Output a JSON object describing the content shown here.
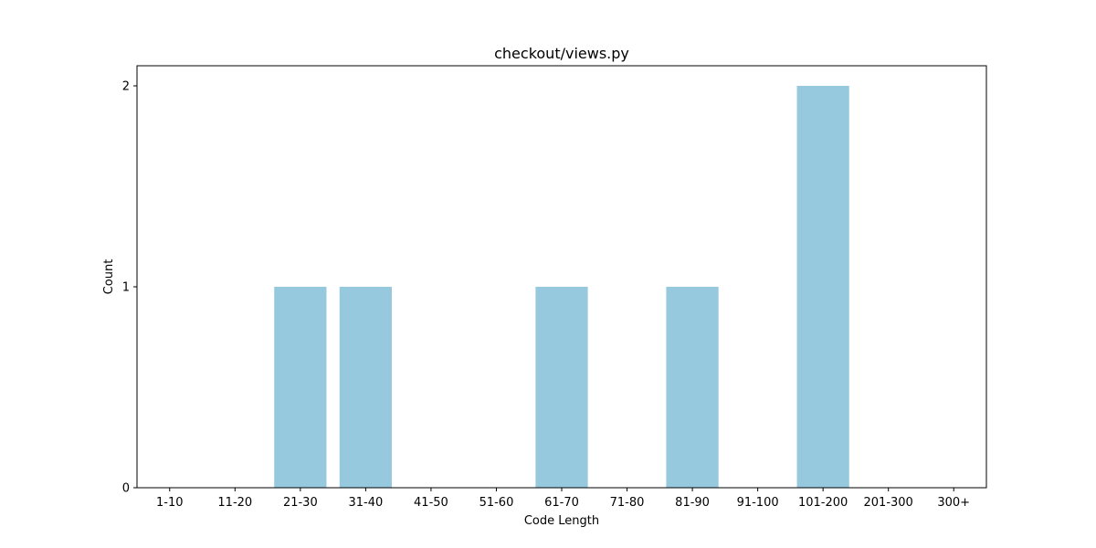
{
  "chart_data": {
    "type": "bar",
    "title": "checkout/views.py",
    "xlabel": "Code Length",
    "ylabel": "Count",
    "categories": [
      "1-10",
      "11-20",
      "21-30",
      "31-40",
      "41-50",
      "51-60",
      "61-70",
      "71-80",
      "81-90",
      "91-100",
      "101-200",
      "201-300",
      "300+"
    ],
    "values": [
      0,
      0,
      1,
      1,
      0,
      0,
      1,
      0,
      1,
      0,
      2,
      0,
      0
    ],
    "ylim": [
      0,
      2.1
    ],
    "yticks": [
      0,
      1,
      2
    ],
    "ytick_labels": [
      "0",
      "1",
      "2"
    ],
    "grid": false,
    "legend": "none",
    "bar_color": "#96c9dd",
    "axis_color": "#000000"
  }
}
